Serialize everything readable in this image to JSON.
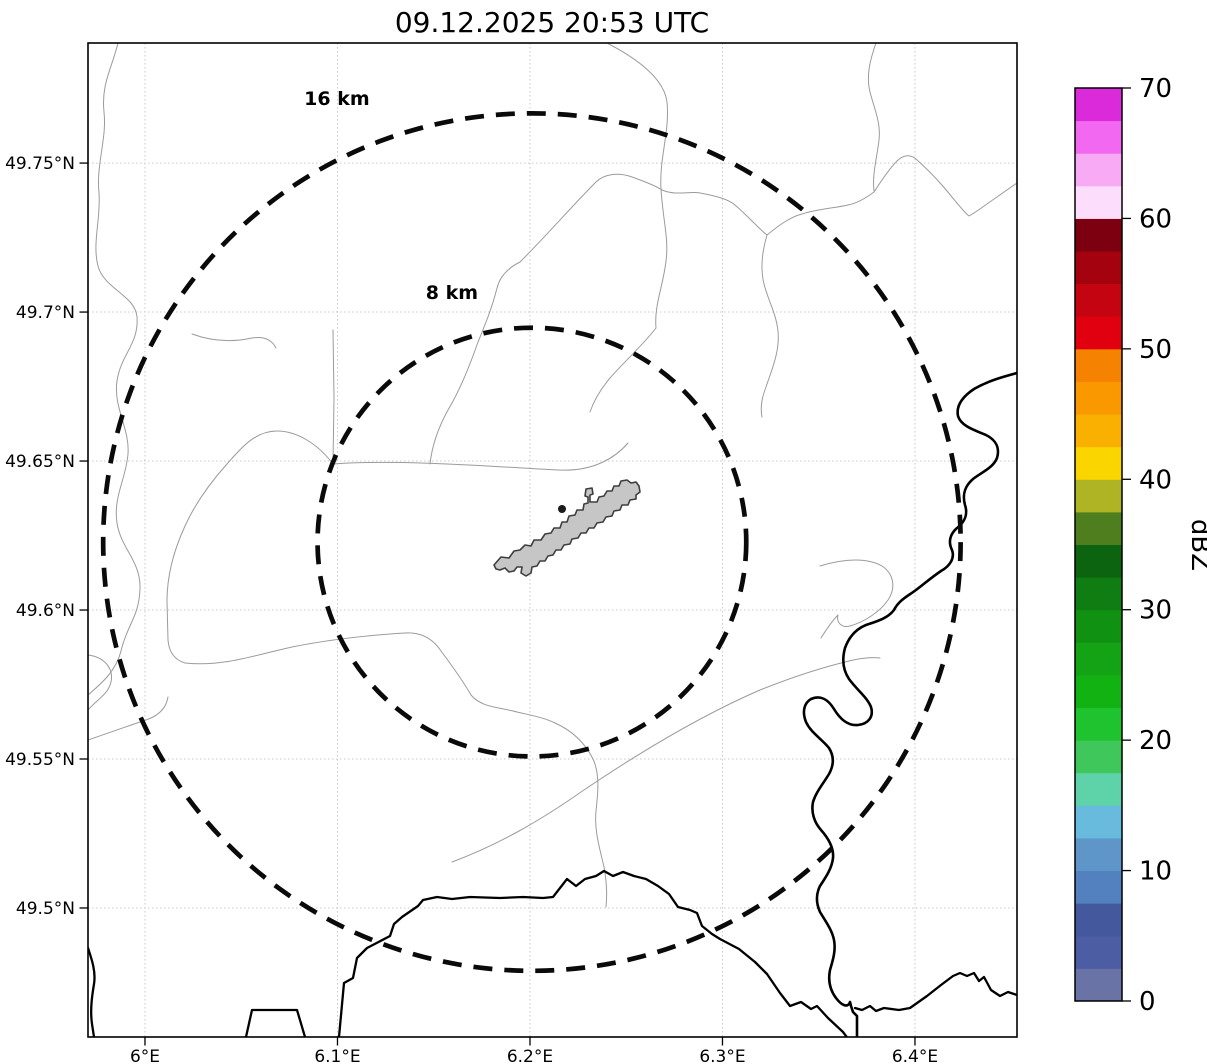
{
  "title": "09.12.2025 20:53 UTC",
  "map": {
    "x_axis": {
      "min": 5.9704,
      "max": 6.453,
      "ticks": [
        {
          "value": 6.0,
          "label": "6°E"
        },
        {
          "value": 6.1,
          "label": "6.1°E"
        },
        {
          "value": 6.2,
          "label": "6.2°E"
        },
        {
          "value": 6.3,
          "label": "6.3°E"
        },
        {
          "value": 6.4,
          "label": "6.4°E"
        }
      ]
    },
    "y_axis": {
      "min": 49.4567,
      "max": 49.7903,
      "ticks": [
        {
          "value": 49.5,
          "label": "49.5°N"
        },
        {
          "value": 49.55,
          "label": "49.55°N"
        },
        {
          "value": 49.6,
          "label": "49.6°N"
        },
        {
          "value": 49.65,
          "label": "49.65°N"
        },
        {
          "value": 49.7,
          "label": "49.7°N"
        },
        {
          "value": 49.75,
          "label": "49.75°N"
        }
      ]
    },
    "grid": true
  },
  "range_rings": {
    "center": {
      "lon": 6.201,
      "lat": 49.6228
    },
    "rings": [
      {
        "label": "16 km",
        "radius_km": 16
      },
      {
        "label": "8 km",
        "radius_km": 8
      }
    ]
  },
  "colorbar": {
    "label": "dBZ",
    "min": 0,
    "max": 70,
    "segment_dbz": 2.5,
    "tick_values": [
      0,
      10,
      20,
      30,
      40,
      50,
      60,
      70
    ],
    "colors_bottom_to_top": [
      "#6973A6",
      "#4D5DA3",
      "#44589E",
      "#5380BE",
      "#5E96CA",
      "#68BBDC",
      "#5ED2A9",
      "#40C75C",
      "#1FC32F",
      "#12B212",
      "#14A314",
      "#119112",
      "#0F7D12",
      "#0D6410",
      "#4E7E1E",
      "#AFB424",
      "#FBD500",
      "#F9B000",
      "#FA9800",
      "#F58200",
      "#E10010",
      "#C40511",
      "#A5020F",
      "#7C000F",
      "#FCDEFC",
      "#F8AAF4",
      "#F268F0",
      "#DA2ADA"
    ]
  },
  "colors": {
    "airport_fill": "#c6c6c6",
    "boundary_gray": "#9b9b9b",
    "country_border": "#000000",
    "ring_black": "#0a0a0a",
    "grid_gray": "#c9c9c9"
  }
}
